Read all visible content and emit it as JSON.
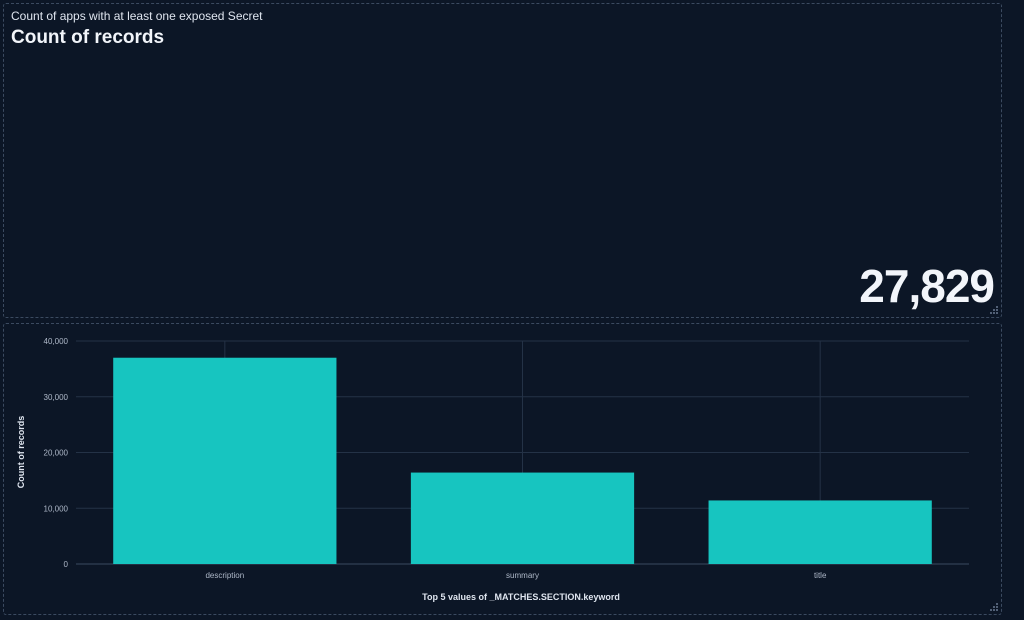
{
  "metric_panel": {
    "title": "Count of apps with at least one exposed Secret",
    "metric_label": "Count of records",
    "metric_value": "27,829"
  },
  "chart_data": {
    "type": "bar",
    "categories": [
      "description",
      "summary",
      "title"
    ],
    "values": [
      37000,
      16400,
      11400
    ],
    "xlabel": "Top 5 values of _MATCHES.SECTION.keyword",
    "ylabel": "Count of records",
    "ylim": [
      0,
      40000
    ],
    "yticks": [
      0,
      10000,
      20000,
      30000,
      40000
    ],
    "ytick_labels": [
      "0",
      "10,000",
      "20,000",
      "30,000",
      "40,000"
    ],
    "grid": true,
    "bar_color": "#17c5c0",
    "grid_color": "#243246"
  },
  "colors": {
    "background": "#0c1626",
    "panel_border": "#3b4a60",
    "text": "#dfe5ef"
  },
  "icons": {
    "resize_handle": "resize-handle-icon"
  }
}
